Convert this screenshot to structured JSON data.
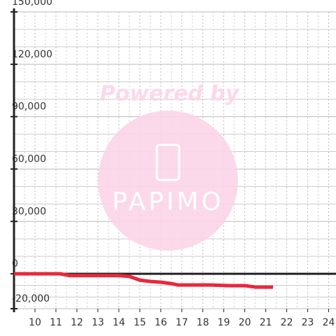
{
  "chart_data": {
    "type": "line",
    "watermark": {
      "top": "Powered by",
      "logo": "PAPIMO"
    },
    "x": [
      9.0,
      11.2,
      11.65,
      14.0,
      14.5,
      15.0,
      15.5,
      16.0,
      16.5,
      16.8,
      18.35,
      19.35,
      20.0,
      20.5,
      21.35
    ],
    "series": [
      {
        "color": "#e8283c",
        "values": [
          0,
          0,
          -1000,
          -1000,
          -1500,
          -3600,
          -4400,
          -4800,
          -5600,
          -6400,
          -6400,
          -6800,
          -6800,
          -7600,
          -7600
        ]
      }
    ],
    "xlim": [
      9,
      24.35
    ],
    "xticks": [
      10,
      11,
      12,
      13,
      14,
      15,
      16,
      17,
      18,
      19,
      20,
      21,
      22,
      23,
      24
    ],
    "ylim": [
      -20000,
      150000
    ],
    "yticks": [
      {
        "value": -20000,
        "label": "-20,000"
      },
      0,
      {
        "value": 30000,
        "label": "30,000"
      },
      {
        "value": 60000,
        "label": "60,000"
      },
      {
        "value": 90000,
        "label": "90,000"
      },
      {
        "value": 120000,
        "label": "120,000"
      },
      {
        "value": 150000,
        "label": "150,000"
      }
    ],
    "grid": true
  }
}
